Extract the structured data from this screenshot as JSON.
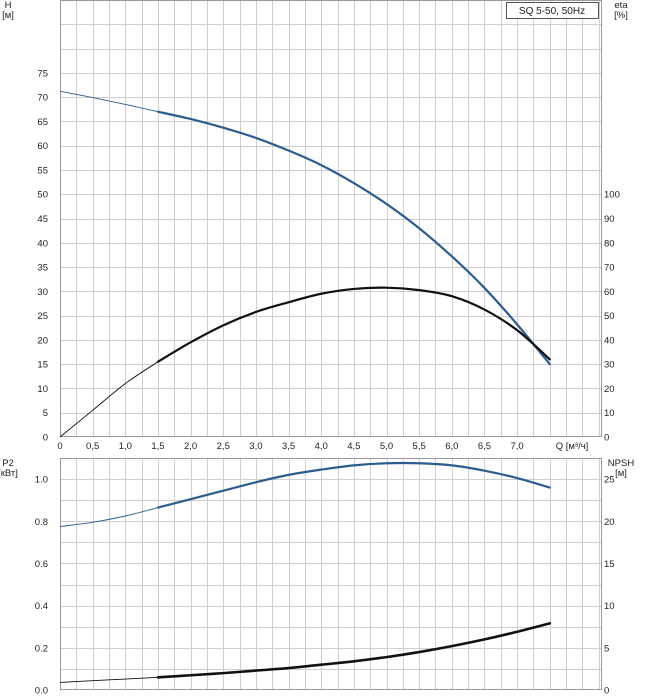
{
  "chart_data": [
    {
      "type": "line",
      "legend": "SQ 5-50, 50Hz",
      "legend_position": "top-right",
      "grid": true,
      "xlabel": "Q [м³/ч]",
      "xlim": [
        0,
        8.3
      ],
      "xticks": [
        "0",
        "0,5",
        "1,0",
        "1,5",
        "2,0",
        "2,5",
        "3,0",
        "3,5",
        "4,0",
        "4,5",
        "5,0",
        "5,5",
        "6,0",
        "6,5",
        "7,0"
      ],
      "ylabel_left": [
        "H",
        "[м]"
      ],
      "ylim_left": [
        0,
        90
      ],
      "yticks_left": [
        "0",
        "5",
        "10",
        "15",
        "20",
        "25",
        "30",
        "35",
        "40",
        "45",
        "50",
        "55",
        "60",
        "65",
        "70",
        "75"
      ],
      "ylabel_right": [
        "eta",
        "[%]"
      ],
      "ylim_right": [
        0,
        180
      ],
      "yticks_right": [
        "0",
        "10",
        "20",
        "30",
        "40",
        "50",
        "60",
        "70",
        "80",
        "90",
        "100"
      ],
      "series": [
        {
          "axis": "left",
          "color": "#2c5d8f",
          "x": [
            0,
            0.5,
            1.0,
            1.5,
            2.0,
            2.5,
            3.0,
            3.5,
            4.0,
            4.5,
            5.0,
            5.5,
            6.0,
            6.5,
            7.0,
            7.5
          ],
          "values": [
            71.2,
            69.9,
            68.5,
            67.0,
            65.5,
            63.7,
            61.6,
            59.0,
            56.0,
            52.3,
            48.0,
            43.0,
            37.2,
            30.7,
            23.2,
            15.0
          ],
          "thin_until_x": 1.5
        },
        {
          "axis": "right",
          "color": "#111111",
          "x": [
            0,
            0.5,
            1.0,
            1.5,
            2.0,
            2.5,
            3.0,
            3.5,
            4.0,
            4.5,
            5.0,
            5.5,
            6.0,
            6.5,
            7.0,
            7.5
          ],
          "values": [
            0,
            11,
            22,
            31,
            39,
            46,
            51.5,
            55.5,
            59,
            61,
            61.5,
            60.5,
            58,
            52.5,
            44,
            32
          ],
          "thin_until_x": 1.5
        }
      ]
    },
    {
      "type": "line",
      "grid": true,
      "xlim": [
        0,
        8.3
      ],
      "ylabel_left": [
        "P2",
        "[кВт]"
      ],
      "ylim_left": [
        0,
        1.1
      ],
      "yticks_left": [
        "0.0",
        "0.2",
        "0.4",
        "0.6",
        "0.8",
        "1.0"
      ],
      "ylabel_right": [
        "NPSH",
        "[м]"
      ],
      "ylim_right": [
        0,
        27.5
      ],
      "yticks_right": [
        "0",
        "5",
        "10",
        "15",
        "20",
        "25"
      ],
      "series": [
        {
          "axis": "left",
          "color": "#2c5d8f",
          "x": [
            0,
            0.5,
            1.0,
            1.5,
            2.0,
            2.5,
            3.0,
            3.5,
            4.0,
            4.5,
            5.0,
            5.5,
            6.0,
            6.5,
            7.0,
            7.5
          ],
          "values": [
            0.775,
            0.795,
            0.825,
            0.865,
            0.905,
            0.945,
            0.985,
            1.02,
            1.045,
            1.065,
            1.075,
            1.075,
            1.065,
            1.04,
            1.005,
            0.96
          ],
          "thin_until_x": 1.5
        },
        {
          "axis": "right",
          "color": "#111111",
          "x": [
            0,
            0.5,
            1.0,
            1.5,
            2.0,
            2.5,
            3.0,
            3.5,
            4.0,
            4.5,
            5.0,
            5.5,
            6.0,
            6.5,
            7.0,
            7.5
          ],
          "values": [
            0.9,
            1.1,
            1.3,
            1.5,
            1.75,
            2.0,
            2.3,
            2.6,
            3.0,
            3.4,
            3.9,
            4.5,
            5.2,
            6.0,
            6.9,
            7.9
          ],
          "thin_until_x": 1.5
        }
      ]
    }
  ]
}
